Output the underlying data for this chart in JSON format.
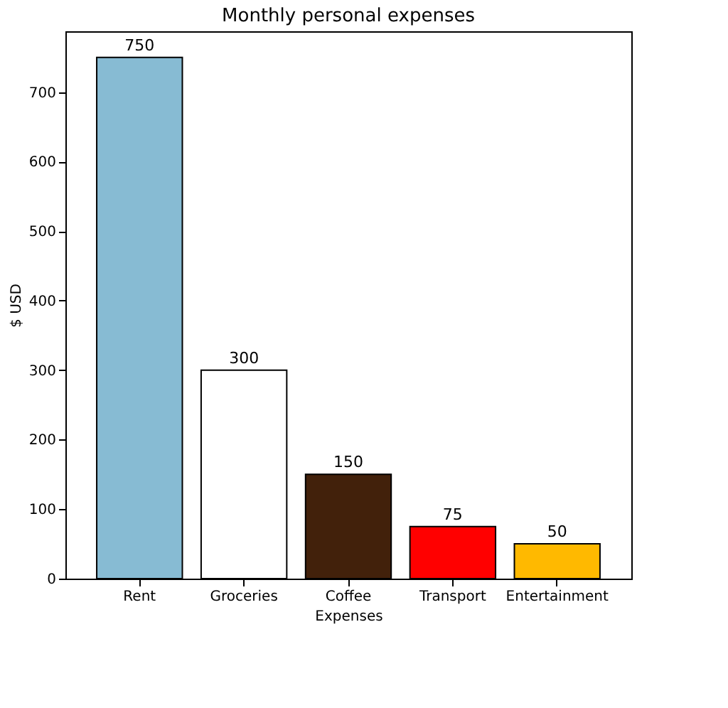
{
  "chart_data": {
    "type": "bar",
    "title": "Monthly personal expenses",
    "xlabel": "Expenses",
    "ylabel": "$ USD",
    "categories": [
      "Rent",
      "Groceries",
      "Coffee",
      "Transport",
      "Entertainment"
    ],
    "values": [
      750,
      300,
      150,
      75,
      50
    ],
    "colors": [
      "#87bbd3",
      "#ffffff",
      "#42210b",
      "#ff0000",
      "#ffb900"
    ],
    "ylim": [
      0,
      787.5
    ],
    "yticks": [
      0,
      100,
      200,
      300,
      400,
      500,
      600,
      700
    ],
    "data_labels": true,
    "grid": false
  }
}
